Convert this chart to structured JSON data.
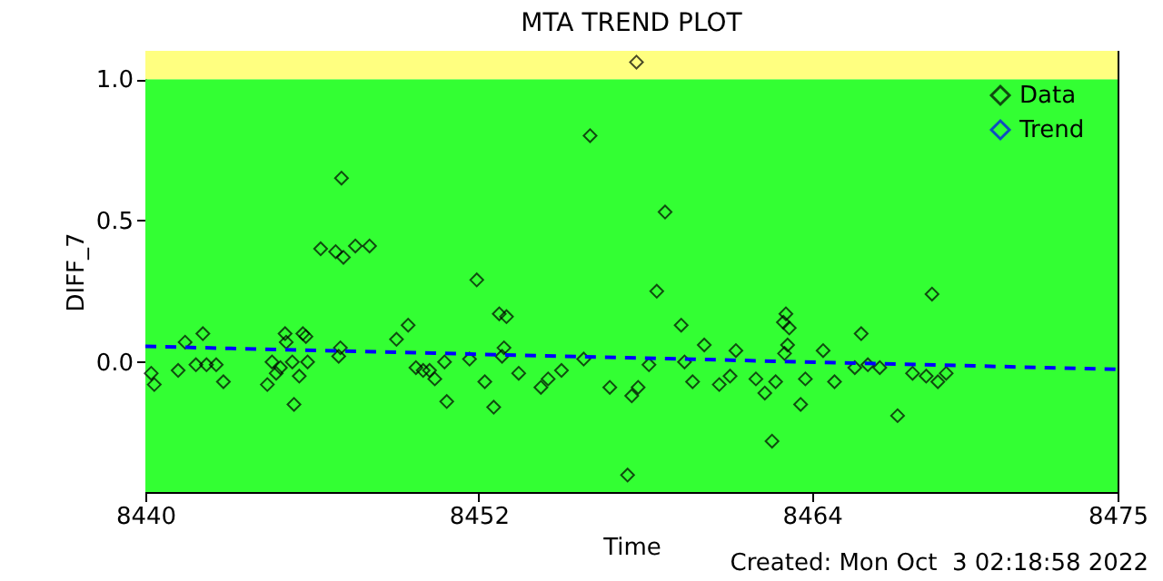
{
  "chart_data": {
    "type": "scatter",
    "title": "MTA TREND PLOT",
    "xlabel": "Time",
    "ylabel": "DIFF_7",
    "annotations": [
      "Created: Mon Oct  3 02:18:58 2022"
    ],
    "xlim": [
      8440,
      8475
    ],
    "xticks": [
      8440,
      8452,
      8464,
      8475
    ],
    "ylim": [
      -0.46,
      1.1
    ],
    "yticks": [
      {
        "value": 0,
        "label": "0.0"
      },
      {
        "value": 0.5,
        "label": "0.5"
      },
      {
        "value": 1,
        "label": "1.0"
      }
    ],
    "grid": false,
    "legend": "top right",
    "bands": [
      {
        "axis": "y",
        "from": -0.46,
        "to": 1.0,
        "color": "#33ff33"
      },
      {
        "axis": "y",
        "from": 1.0,
        "to": 1.1,
        "color": "#ffff80"
      }
    ],
    "series": [
      {
        "name": "Data",
        "marker": "diamond",
        "color": "#000000",
        "x": [
          8440.21,
          8440.32,
          8441.18,
          8441.43,
          8441.82,
          8442.07,
          8442.2,
          8442.55,
          8442.81,
          8444.39,
          8444.56,
          8444.71,
          8444.86,
          8445.03,
          8445.07,
          8445.29,
          8445.35,
          8445.54,
          8445.67,
          8445.78,
          8445.84,
          8446.31,
          8446.85,
          8447.02,
          8446.96,
          8447.06,
          8447.13,
          8447.56,
          8448.07,
          8449.04,
          8449.46,
          8449.74,
          8450.0,
          8450.23,
          8450.42,
          8450.77,
          8450.85,
          8451.67,
          8451.93,
          8452.22,
          8452.54,
          8452.74,
          8452.91,
          8453.0,
          8452.84,
          8453.44,
          8454.24,
          8454.5,
          8454.98,
          8455.78,
          8456.01,
          8456.72,
          8457.36,
          8457.51,
          8457.74,
          8457.68,
          8458.13,
          8458.41,
          8458.71,
          8459.29,
          8459.41,
          8459.7,
          8460.12,
          8460.66,
          8461.05,
          8461.26,
          8461.98,
          8462.3,
          8462.56,
          8462.69,
          8462.97,
          8463.01,
          8463.06,
          8463.18,
          8463.12,
          8463.59,
          8463.76,
          8464.4,
          8464.81,
          8465.54,
          8465.77,
          8466.01,
          8466.44,
          8467.08,
          8467.62,
          8468.11,
          8468.32,
          8468.53,
          8468.83
        ],
        "values": [
          -0.04,
          -0.08,
          -0.03,
          0.07,
          -0.01,
          0.1,
          -0.01,
          -0.01,
          -0.07,
          -0.08,
          0.0,
          -0.04,
          -0.02,
          0.1,
          0.07,
          0.0,
          -0.15,
          -0.05,
          0.1,
          0.09,
          0.0,
          0.4,
          0.39,
          0.05,
          0.02,
          0.65,
          0.37,
          0.41,
          0.41,
          0.08,
          0.13,
          -0.02,
          -0.03,
          -0.03,
          -0.06,
          0.0,
          -0.14,
          0.01,
          0.29,
          -0.07,
          -0.16,
          0.17,
          0.05,
          0.16,
          0.02,
          -0.04,
          -0.09,
          -0.06,
          -0.03,
          0.01,
          0.8,
          -0.09,
          -0.4,
          -0.12,
          -0.09,
          1.06,
          -0.01,
          0.25,
          0.53,
          0.13,
          0.0,
          -0.07,
          0.06,
          -0.08,
          -0.05,
          0.04,
          -0.06,
          -0.11,
          -0.28,
          -0.07,
          0.14,
          0.03,
          0.17,
          0.12,
          0.06,
          -0.15,
          -0.06,
          0.04,
          -0.07,
          -0.02,
          0.1,
          -0.01,
          -0.02,
          -0.19,
          -0.04,
          -0.05,
          0.24,
          -0.07,
          -0.04
        ]
      },
      {
        "name": "Trend",
        "type": "line",
        "line_style": "dashed",
        "color": "#0000ff",
        "x": [
          8440,
          8475
        ],
        "values": [
          0.055,
          -0.026
        ]
      }
    ]
  }
}
